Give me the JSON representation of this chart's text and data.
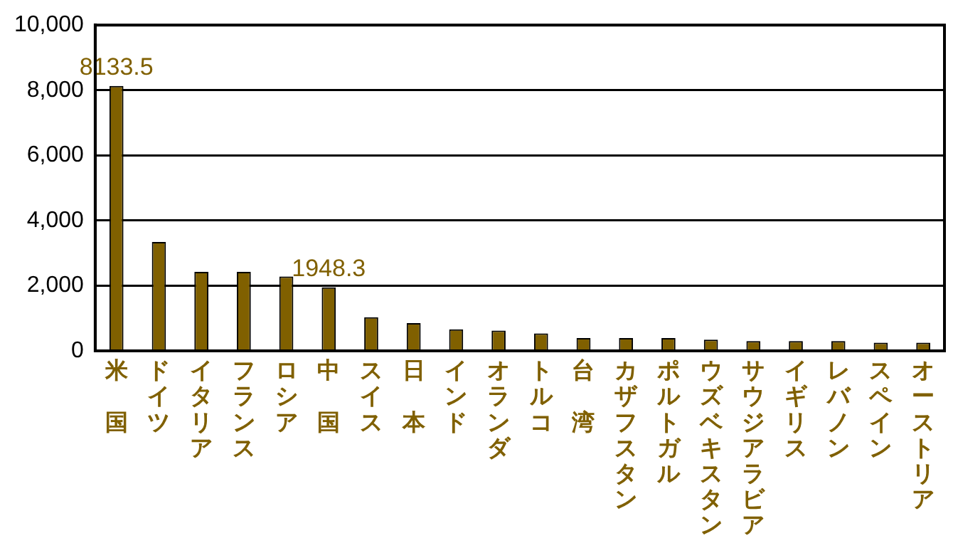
{
  "chart_data": {
    "type": "bar",
    "categories": [
      "米国",
      "ドイツ",
      "イタリア",
      "フランス",
      "ロシア",
      "中国",
      "スイス",
      "日本",
      "インド",
      "オランダ",
      "トルコ",
      "台湾",
      "カザフスタン",
      "ポルトガル",
      "ウズベキスタン",
      "サウジアラビア",
      "イギリス",
      "レバノン",
      "スペイン",
      "オーストリア"
    ],
    "values": [
      8133.5,
      3340,
      2420,
      2420,
      2280,
      1948.3,
      1030,
      850,
      660,
      620,
      530,
      390,
      390,
      390,
      340,
      300,
      300,
      300,
      250,
      250
    ],
    "value_labels": [
      "8133.5",
      null,
      null,
      null,
      null,
      "1948.3",
      null,
      null,
      null,
      null,
      null,
      null,
      null,
      null,
      null,
      null,
      null,
      null,
      null,
      null
    ],
    "color": "#806000",
    "ylim": [
      0,
      10000
    ],
    "yticks": [
      {
        "value": 0,
        "label": "0"
      },
      {
        "value": 2000,
        "label": "2,000"
      },
      {
        "value": 4000,
        "label": "4,000"
      },
      {
        "value": 6000,
        "label": "6,000"
      },
      {
        "value": 8000,
        "label": "8,000"
      },
      {
        "value": 10000,
        "label": "10,000"
      }
    ],
    "grid": "y",
    "legend": false
  }
}
